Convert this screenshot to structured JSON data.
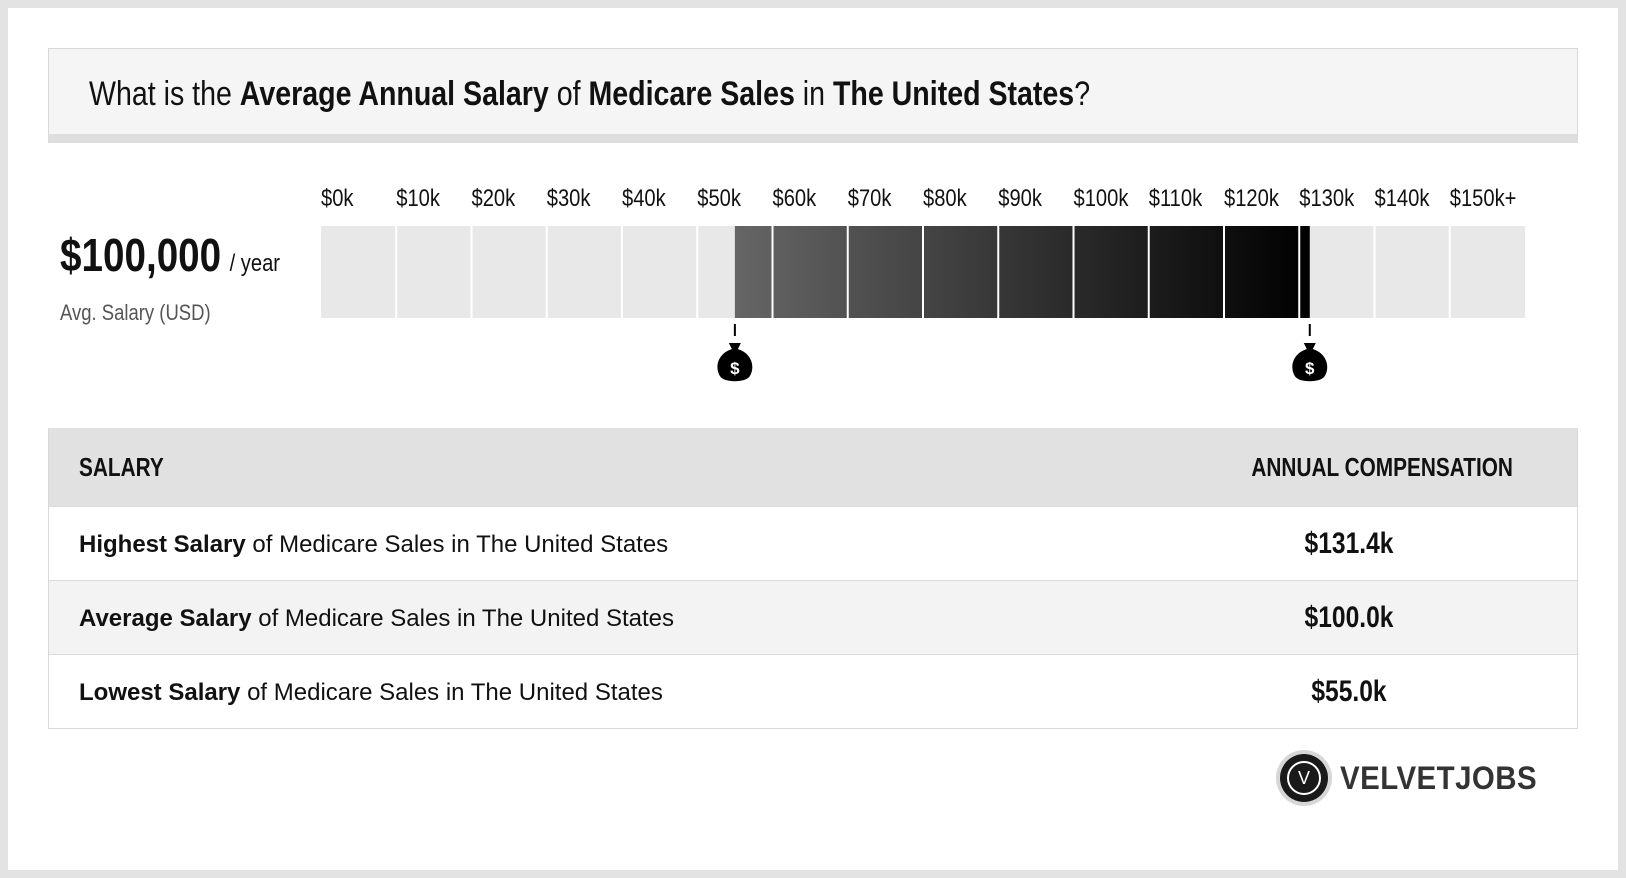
{
  "title": {
    "prefix": "What is the ",
    "metric": "Average Annual Salary",
    "of": " of ",
    "job": "Medicare Sales",
    "in": " in ",
    "location": "The United States",
    "suffix": "?"
  },
  "average": {
    "amount": "$100,000",
    "unit": "/ year",
    "caption": "Avg. Salary (USD)"
  },
  "chart_data": {
    "type": "bar",
    "categories": [
      "$0k",
      "$10k",
      "$20k",
      "$30k",
      "$40k",
      "$50k",
      "$60k",
      "$70k",
      "$80k",
      "$90k",
      "$100k",
      "$110k",
      "$120k",
      "$130k",
      "$140k",
      "$150k+"
    ],
    "range_low": 55000,
    "range_high": 131400,
    "average": 100000,
    "xlim": [
      0,
      150000
    ],
    "colors": {
      "empty": "#e8e8e8",
      "gradient_start": "#666666",
      "gradient_end": "#000000",
      "marker": "#000000"
    },
    "markers": [
      {
        "value": 55000,
        "icon": "money-bag-icon",
        "glyph": "$"
      },
      {
        "value": 131400,
        "icon": "money-bag-icon",
        "glyph": "$"
      }
    ]
  },
  "table": {
    "headers": {
      "left": "SALARY",
      "right": "ANNUAL COMPENSATION"
    },
    "rows": [
      {
        "bold": "Highest Salary",
        "rest": " of Medicare Sales in The United States",
        "value": "$131.4k"
      },
      {
        "bold": "Average Salary",
        "rest": " of Medicare Sales in The United States",
        "value": "$100.0k"
      },
      {
        "bold": "Lowest Salary",
        "rest": " of Medicare Sales in The United States",
        "value": "$55.0k"
      }
    ]
  },
  "brand": {
    "logo_letter": "V",
    "name": "VELVETJOBS"
  }
}
